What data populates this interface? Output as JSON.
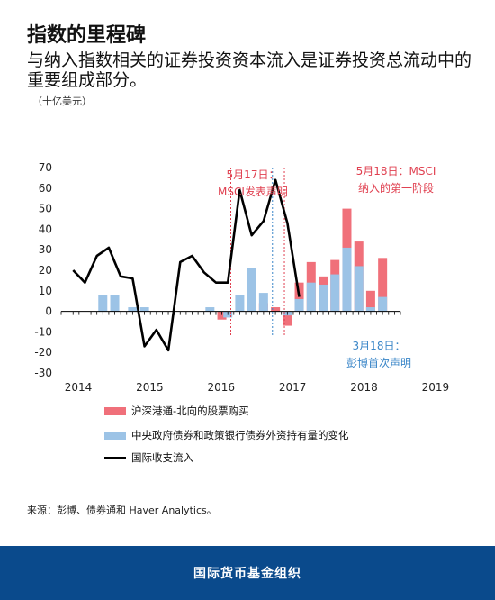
{
  "header": {
    "title": "指数的里程碑",
    "subtitle": "与纳入指数相关的证券投资资本流入是证券投资总流动中的重要组成部分。",
    "unit": "（十亿美元）"
  },
  "chart_data": {
    "type": "bar",
    "title": "",
    "xlabel": "",
    "ylabel": "",
    "ylim": [
      -30,
      70
    ],
    "yticks": [
      70,
      60,
      50,
      40,
      30,
      20,
      10,
      0,
      -10,
      -20,
      -30
    ],
    "year_labels": [
      "2014",
      "2015",
      "2016",
      "2017",
      "2018",
      "2019"
    ],
    "series": [
      {
        "name": "沪深港通-北向的股票购买",
        "type": "bar",
        "color": "#f0707a",
        "points": [
          [
            2016.0,
            -4
          ],
          [
            2016.083,
            -2
          ],
          [
            2016.417,
            2
          ],
          [
            2016.583,
            4
          ],
          [
            2016.75,
            2
          ],
          [
            2016.917,
            -7
          ],
          [
            2017.083,
            14
          ],
          [
            2017.25,
            24
          ],
          [
            2017.417,
            17
          ],
          [
            2017.583,
            25
          ],
          [
            2017.75,
            50
          ],
          [
            2017.917,
            34
          ],
          [
            2018.083,
            10
          ],
          [
            2018.25,
            26
          ]
        ]
      },
      {
        "name": "中央政府债券和政策银行债券外资持有量的变化",
        "type": "bar",
        "color": "#9cc3e6",
        "points": [
          [
            2014.333,
            8
          ],
          [
            2014.5,
            8
          ],
          [
            2014.75,
            2
          ],
          [
            2014.917,
            2
          ],
          [
            2015.833,
            2
          ],
          [
            2016.083,
            -3
          ],
          [
            2016.25,
            8
          ],
          [
            2016.417,
            21
          ],
          [
            2016.583,
            9
          ],
          [
            2016.917,
            -2
          ],
          [
            2017.083,
            6
          ],
          [
            2017.25,
            14
          ],
          [
            2017.417,
            13
          ],
          [
            2017.583,
            18
          ],
          [
            2017.75,
            31
          ],
          [
            2017.917,
            22
          ],
          [
            2018.083,
            2
          ],
          [
            2018.25,
            7
          ]
        ]
      },
      {
        "name": "国际收支流入",
        "type": "line",
        "color": "#000000",
        "points": [
          [
            2013.917,
            20
          ],
          [
            2014.083,
            14
          ],
          [
            2014.25,
            27
          ],
          [
            2014.417,
            31
          ],
          [
            2014.583,
            17
          ],
          [
            2014.75,
            16
          ],
          [
            2014.917,
            -17
          ],
          [
            2015.083,
            -9
          ],
          [
            2015.25,
            -19
          ],
          [
            2015.417,
            24
          ],
          [
            2015.583,
            27
          ],
          [
            2015.75,
            19
          ],
          [
            2015.917,
            14
          ],
          [
            2016.083,
            14
          ],
          [
            2016.25,
            59
          ],
          [
            2016.417,
            37
          ],
          [
            2016.583,
            44
          ],
          [
            2016.75,
            64
          ],
          [
            2016.917,
            43
          ],
          [
            2017.083,
            7
          ]
        ]
      }
    ],
    "annotations": [
      {
        "id": "msci-announce",
        "text_lines": [
          "5月17日：",
          "MSCI发表声明"
        ],
        "x": 2016.125,
        "color": "#e04050"
      },
      {
        "id": "msci-inclusion",
        "text_lines": [
          "5月18日：MSCI",
          "纳入的第一阶段"
        ],
        "x": 2016.875,
        "color": "#e04050"
      },
      {
        "id": "bloomberg-announce",
        "text_lines": [
          "3月18日：",
          "彭博首次声明"
        ],
        "x": 2016.708,
        "color": "#3a86c8"
      }
    ]
  },
  "legend": {
    "items": [
      {
        "label": "沪深港通-北向的股票购买",
        "color": "#f0707a",
        "kind": "bar"
      },
      {
        "label": "中央政府债券和政策银行债券外资持有量的变化",
        "color": "#9cc3e6",
        "kind": "bar"
      },
      {
        "label": "国际收支流入",
        "color": "#000000",
        "kind": "line"
      }
    ]
  },
  "source": "来源：彭博、债券通和 Haver Analytics。",
  "footer": {
    "org": "国际货币基金组织"
  }
}
